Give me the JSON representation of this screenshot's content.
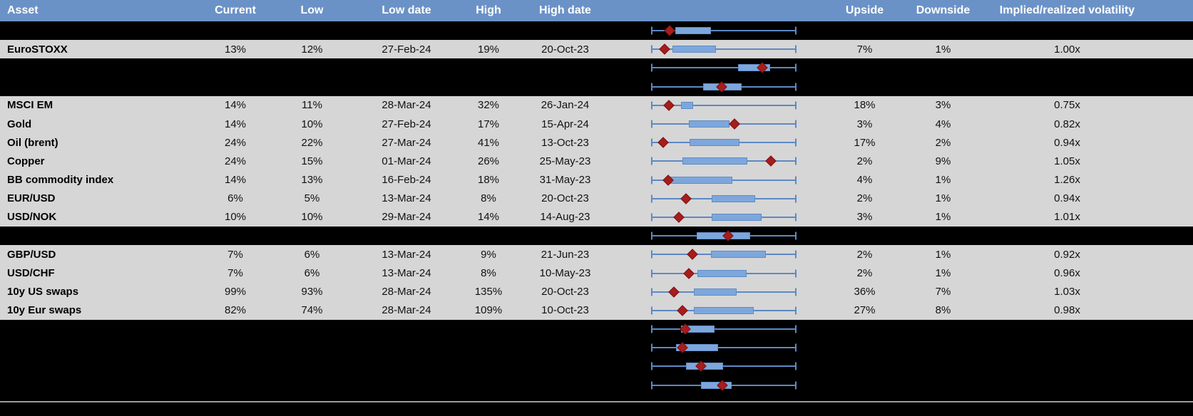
{
  "colors": {
    "header-bg": "#6b92c7",
    "row-gray": "#d6d6d6",
    "row-black": "#000000",
    "whisker": "#5d89c4",
    "box-fill": "#7da7dc",
    "box-border": "#5f8cc4",
    "marker": "#a51d1d",
    "bottom-line": "#9b9b9b"
  },
  "table": {
    "columns": [
      "Asset",
      "Current",
      "Low",
      "Low date",
      "High",
      "High date",
      "",
      "Upside",
      "Downside",
      "Implied/realized volatility"
    ],
    "rows": [
      {
        "type": "chart-only",
        "boxplot": {
          "whisker_min_pct": 0,
          "whisker_max_pct": 100,
          "box_start_pct": 16.7,
          "box_end_pct": 41.2,
          "marker_pct": 12.7
        }
      },
      {
        "type": "data",
        "asset": "EuroSTOXX",
        "current": "13%",
        "low": "12%",
        "low_date": "27-Feb-24",
        "high": "19%",
        "high_date": "20-Oct-23",
        "upside": "7%",
        "downside": "1%",
        "implied_realized": "1.00x",
        "boxplot": {
          "whisker_min_pct": 0,
          "whisker_max_pct": 100,
          "box_start_pct": 14.7,
          "box_end_pct": 44.6,
          "marker_pct": 9.3
        }
      },
      {
        "type": "chart-only",
        "boxplot": {
          "whisker_min_pct": 0,
          "whisker_max_pct": 100,
          "box_start_pct": 59.8,
          "box_end_pct": 81.9,
          "marker_pct": 76.5
        }
      },
      {
        "type": "chart-only",
        "boxplot": {
          "whisker_min_pct": 0,
          "whisker_max_pct": 100,
          "box_start_pct": 35.8,
          "box_end_pct": 62.3,
          "marker_pct": 48.5
        }
      },
      {
        "type": "data",
        "asset": "MSCI EM",
        "current": "14%",
        "low": "11%",
        "low_date": "28-Mar-24",
        "high": "32%",
        "high_date": "26-Jan-24",
        "upside": "18%",
        "downside": "3%",
        "implied_realized": "0.75x",
        "boxplot": {
          "whisker_min_pct": 0,
          "whisker_max_pct": 100,
          "box_start_pct": 20.6,
          "box_end_pct": 28.9,
          "marker_pct": 12.3
        }
      },
      {
        "type": "data",
        "asset": "Gold",
        "current": "14%",
        "low": "10%",
        "low_date": "27-Feb-24",
        "high": "17%",
        "high_date": "15-Apr-24",
        "upside": "3%",
        "downside": "4%",
        "implied_realized": "0.82x",
        "boxplot": {
          "whisker_min_pct": 0,
          "whisker_max_pct": 100,
          "box_start_pct": 26.0,
          "box_end_pct": 53.9,
          "marker_pct": 57.4
        }
      },
      {
        "type": "data",
        "asset": "Oil (brent)",
        "current": "24%",
        "low": "22%",
        "low_date": "27-Mar-24",
        "high": "41%",
        "high_date": "13-Oct-23",
        "upside": "17%",
        "downside": "2%",
        "implied_realized": "0.94x",
        "boxplot": {
          "whisker_min_pct": 0,
          "whisker_max_pct": 100,
          "box_start_pct": 26.5,
          "box_end_pct": 60.8,
          "marker_pct": 8.3
        }
      },
      {
        "type": "data",
        "asset": "Copper",
        "current": "24%",
        "low": "15%",
        "low_date": "01-Mar-24",
        "high": "26%",
        "high_date": "25-May-23",
        "upside": "2%",
        "downside": "9%",
        "implied_realized": "1.05x",
        "boxplot": {
          "whisker_min_pct": 0,
          "whisker_max_pct": 100,
          "box_start_pct": 21.6,
          "box_end_pct": 66.2,
          "marker_pct": 82.4
        }
      },
      {
        "type": "data",
        "asset": "BB commodity index",
        "current": "14%",
        "low": "13%",
        "low_date": "16-Feb-24",
        "high": "18%",
        "high_date": "31-May-23",
        "upside": "4%",
        "downside": "1%",
        "implied_realized": "1.26x",
        "boxplot": {
          "whisker_min_pct": 0,
          "whisker_max_pct": 100,
          "box_start_pct": 13.2,
          "box_end_pct": 55.9,
          "marker_pct": 11.8
        }
      },
      {
        "type": "data",
        "asset": "EUR/USD",
        "current": "6%",
        "low": "5%",
        "low_date": "13-Mar-24",
        "high": "8%",
        "high_date": "20-Oct-23",
        "upside": "2%",
        "downside": "1%",
        "implied_realized": "0.94x",
        "boxplot": {
          "whisker_min_pct": 0,
          "whisker_max_pct": 100,
          "box_start_pct": 41.7,
          "box_end_pct": 71.6,
          "marker_pct": 24.0
        }
      },
      {
        "type": "data",
        "asset": "USD/NOK",
        "current": "10%",
        "low": "10%",
        "low_date": "29-Mar-24",
        "high": "14%",
        "high_date": "14-Aug-23",
        "upside": "3%",
        "downside": "1%",
        "implied_realized": "1.01x",
        "boxplot": {
          "whisker_min_pct": 0,
          "whisker_max_pct": 100,
          "box_start_pct": 41.7,
          "box_end_pct": 76.0,
          "marker_pct": 19.1
        }
      },
      {
        "type": "chart-only",
        "boxplot": {
          "whisker_min_pct": 0,
          "whisker_max_pct": 100,
          "box_start_pct": 31.4,
          "box_end_pct": 68.1,
          "marker_pct": 52.9
        }
      },
      {
        "type": "data",
        "asset": "GBP/USD",
        "current": "7%",
        "low": "6%",
        "low_date": "13-Mar-24",
        "high": "9%",
        "high_date": "21-Jun-23",
        "upside": "2%",
        "downside": "1%",
        "implied_realized": "0.92x",
        "boxplot": {
          "whisker_min_pct": 0,
          "whisker_max_pct": 100,
          "box_start_pct": 41.2,
          "box_end_pct": 78.9,
          "marker_pct": 28.4
        }
      },
      {
        "type": "data",
        "asset": "USD/CHF",
        "current": "7%",
        "low": "6%",
        "low_date": "13-Mar-24",
        "high": "8%",
        "high_date": "10-May-23",
        "upside": "2%",
        "downside": "1%",
        "implied_realized": "0.96x",
        "boxplot": {
          "whisker_min_pct": 0,
          "whisker_max_pct": 100,
          "box_start_pct": 31.9,
          "box_end_pct": 65.7,
          "marker_pct": 26.0
        }
      },
      {
        "type": "data",
        "asset": "10y US swaps",
        "current": "99%",
        "low": "93%",
        "low_date": "28-Mar-24",
        "high": "135%",
        "high_date": "20-Oct-23",
        "upside": "36%",
        "downside": "7%",
        "implied_realized": "1.03x",
        "boxplot": {
          "whisker_min_pct": 0,
          "whisker_max_pct": 100,
          "box_start_pct": 29.4,
          "box_end_pct": 58.8,
          "marker_pct": 15.7
        }
      },
      {
        "type": "data",
        "asset": "10y Eur swaps",
        "current": "82%",
        "low": "74%",
        "low_date": "28-Mar-24",
        "high": "109%",
        "high_date": "10-Oct-23",
        "upside": "27%",
        "downside": "8%",
        "implied_realized": "0.98x",
        "boxplot": {
          "whisker_min_pct": 0,
          "whisker_max_pct": 100,
          "box_start_pct": 29.4,
          "box_end_pct": 70.6,
          "marker_pct": 21.6
        }
      },
      {
        "type": "chart-only",
        "boxplot": {
          "whisker_min_pct": 0,
          "whisker_max_pct": 100,
          "box_start_pct": 20.6,
          "box_end_pct": 43.6,
          "marker_pct": 23.5
        }
      },
      {
        "type": "chart-only",
        "boxplot": {
          "whisker_min_pct": 0,
          "whisker_max_pct": 100,
          "box_start_pct": 17.2,
          "box_end_pct": 46.1,
          "marker_pct": 21.6
        }
      },
      {
        "type": "chart-only",
        "boxplot": {
          "whisker_min_pct": 0,
          "whisker_max_pct": 100,
          "box_start_pct": 24.0,
          "box_end_pct": 49.5,
          "marker_pct": 34.3
        }
      },
      {
        "type": "chart-only",
        "boxplot": {
          "whisker_min_pct": 0,
          "whisker_max_pct": 100,
          "box_start_pct": 34.3,
          "box_end_pct": 55.4,
          "marker_pct": 49.0
        }
      }
    ]
  }
}
